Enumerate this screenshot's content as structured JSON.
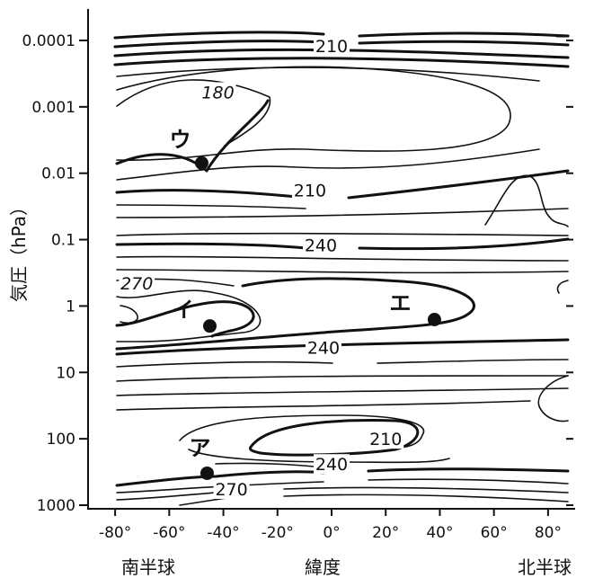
{
  "chart_data": {
    "type": "contour",
    "xlabel": "緯度",
    "ylabel": "気圧（hPa）",
    "hemisphere_labels": {
      "south": "南半球",
      "north": "北半球"
    },
    "x_ticks": [
      "-80°",
      "-60°",
      "-40°",
      "-20°",
      "0°",
      "20°",
      "40°",
      "60°",
      "80°"
    ],
    "x_tick_values": [
      -80,
      -60,
      -40,
      -20,
      0,
      20,
      40,
      60,
      80
    ],
    "xlim": [
      -90,
      90
    ],
    "y_ticks": [
      "0.0001",
      "0.001",
      "0.01",
      "0.1",
      "1",
      "10",
      "100",
      "1000"
    ],
    "y_tick_values": [
      0.0001,
      0.001,
      0.01,
      0.1,
      1,
      10,
      100,
      1000
    ],
    "ylim": [
      2e-05,
      1000
    ],
    "yscale": "log",
    "y_inverted": true,
    "contour_labels": [
      {
        "text": "210",
        "lat": 0,
        "pressure": 0.00012
      },
      {
        "text": "180",
        "lat": -42,
        "pressure": 0.0006,
        "italic": true
      },
      {
        "text": "210",
        "lat": -8,
        "pressure": 0.018
      },
      {
        "text": "240",
        "lat": -4,
        "pressure": 0.12
      },
      {
        "text": "270",
        "lat": -72,
        "pressure": 0.45,
        "italic": true
      },
      {
        "text": "240",
        "lat": -3,
        "pressure": 4.2
      },
      {
        "text": "210",
        "lat": 20,
        "pressure": 100
      },
      {
        "text": "240",
        "lat": 0,
        "pressure": 240
      },
      {
        "text": "270",
        "lat": -37,
        "pressure": 570
      }
    ],
    "markers": [
      {
        "label": "ウ",
        "lat": -48,
        "pressure": 0.007
      },
      {
        "label": "イ",
        "lat": -45,
        "pressure": 2
      },
      {
        "label": "エ",
        "lat": 38,
        "pressure": 1.6
      },
      {
        "label": "ア",
        "lat": -46,
        "pressure": 330
      }
    ]
  }
}
